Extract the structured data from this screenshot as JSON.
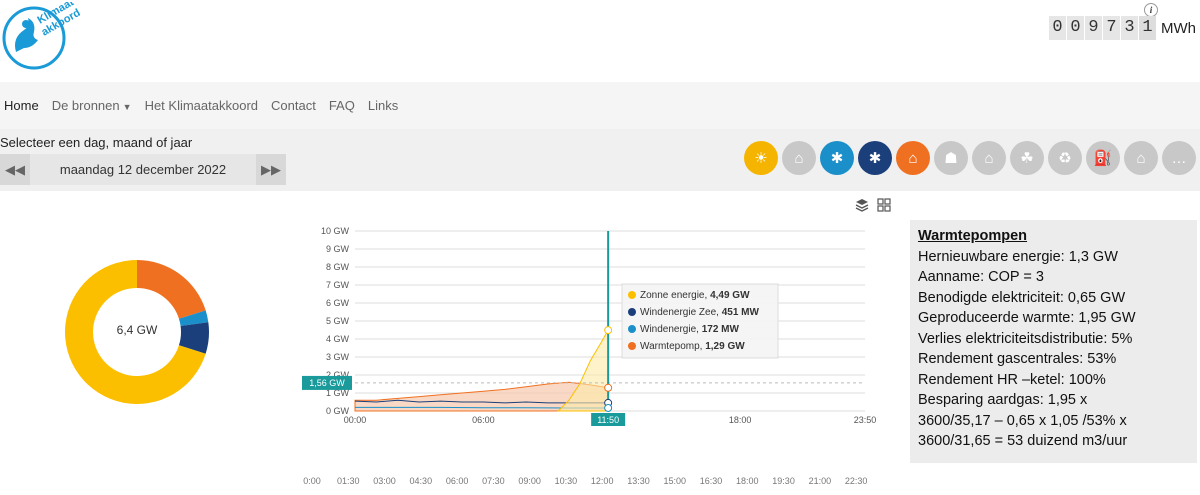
{
  "header": {
    "logo_text": "Klimaat-akkoord",
    "counter_digits": [
      "0",
      "0",
      "9",
      "7",
      "3"
    ],
    "counter_last": "1",
    "counter_unit": "MWh",
    "info_badge": "i"
  },
  "nav": {
    "items": [
      {
        "label": "Home",
        "active": true
      },
      {
        "label": "De bronnen",
        "dropdown": true
      },
      {
        "label": "Het Klimaatakkoord"
      },
      {
        "label": "Contact"
      },
      {
        "label": "FAQ"
      },
      {
        "label": "Links"
      }
    ]
  },
  "toolbar": {
    "select_label": "Selecteer een dag, maand of jaar",
    "date": "maandag 12 december 2022",
    "prev_icon": "rewind-icon",
    "next_icon": "fast-forward-icon",
    "sources": [
      {
        "name": "sun-icon",
        "color": "#f5b400"
      },
      {
        "name": "factory-icon",
        "color": "#c8c8c8"
      },
      {
        "name": "wind-turbine-icon",
        "color": "#1a8fc9"
      },
      {
        "name": "offshore-wind-icon",
        "color": "#1a3f7a"
      },
      {
        "name": "heat-pump-icon",
        "color": "#f07021"
      },
      {
        "name": "power-plant-icon",
        "color": "#c8c8c8"
      },
      {
        "name": "house-flame-icon",
        "color": "#c8c8c8"
      },
      {
        "name": "biomass-icon",
        "color": "#c8c8c8"
      },
      {
        "name": "waste-icon",
        "color": "#c8c8c8"
      },
      {
        "name": "fuel-pump-icon",
        "color": "#c8c8c8"
      },
      {
        "name": "home-icon",
        "color": "#c8c8c8"
      },
      {
        "name": "more-icon",
        "color": "#c8c8c8"
      }
    ]
  },
  "donut": {
    "center_label": "6,4 GW",
    "segments": [
      {
        "name": "Warmtepomp",
        "value": 1.29,
        "color": "#f07021"
      },
      {
        "name": "Windenergie",
        "value": 0.172,
        "color": "#1a8fc9"
      },
      {
        "name": "Windenergie Zee",
        "value": 0.451,
        "color": "#1a3f7a"
      },
      {
        "name": "Zonne energie",
        "value": 4.49,
        "color": "#fcbf00"
      }
    ]
  },
  "chart": {
    "y_ticks": [
      "10 GW",
      "9 GW",
      "8 GW",
      "7 GW",
      "6 GW",
      "5 GW",
      "4 GW",
      "3 GW",
      "2 GW",
      "1 GW",
      "0 GW"
    ],
    "x_ticks": [
      "00:00",
      "06:00",
      "18:00",
      "23:50"
    ],
    "cursor_label": "11:50",
    "cursor_value_label": "1,56 GW",
    "bottom_ticks": [
      "0:00",
      "01:30",
      "03:00",
      "04:30",
      "06:00",
      "07:30",
      "09:00",
      "10:30",
      "12:00",
      "13:30",
      "15:00",
      "16:30",
      "18:00",
      "19:30",
      "21:00",
      "22:30"
    ],
    "tooltip": [
      {
        "series": "Zonne energie, ",
        "value": "4,49 GW",
        "color": "#fcbf00"
      },
      {
        "series": "Windenergie Zee, ",
        "value": "451 MW",
        "color": "#1a3f7a"
      },
      {
        "series": "Windenergie, ",
        "value": "172 MW",
        "color": "#1a8fc9"
      },
      {
        "series": "Warmtepomp, ",
        "value": "1,29 GW",
        "color": "#f07021"
      }
    ]
  },
  "note": {
    "title": "Warmtepompen",
    "lines": [
      "Hernieuwbare energie: 1,3 GW",
      "Aanname: COP = 3",
      "Benodigde elektriciteit: 0,65 GW",
      "Geproduceerde warmte: 1,95 GW",
      "Verlies elektriciteitsdistributie: 5%",
      "Rendement gascentrales: 53%",
      "Rendement HR –ketel: 100%",
      "Besparing aardgas: 1,95 x",
      "3600/35,17 – 0,65 x 1,05 /53% x",
      "3600/31,65 = 53 duizend m3/uur"
    ]
  }
}
